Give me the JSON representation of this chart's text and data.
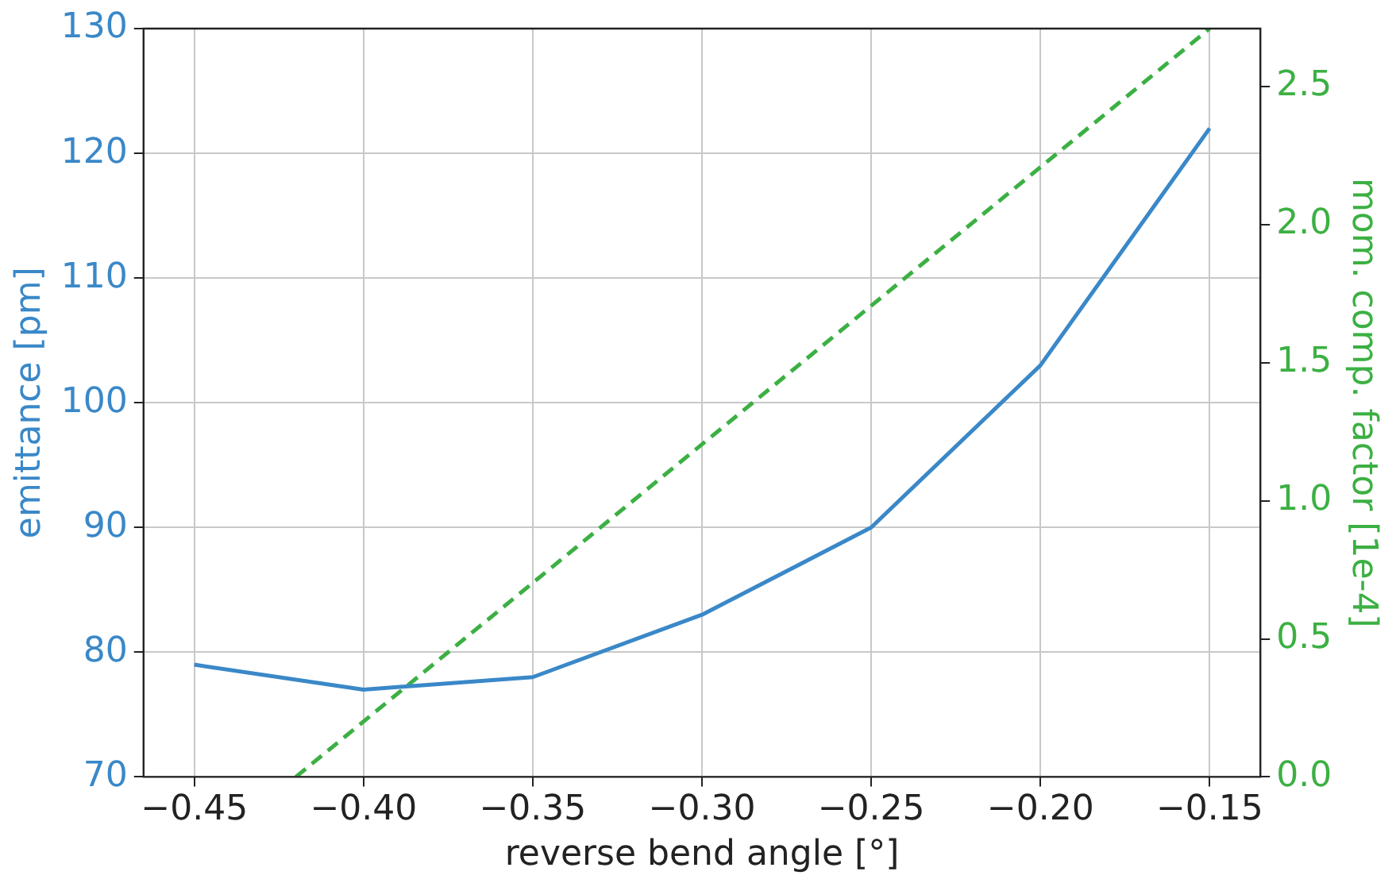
{
  "chart_data": {
    "type": "line",
    "xlabel": "reverse bend angle [°]",
    "ylabel": "emittance [pm]",
    "y2label": "mom. comp. factor [1e-4]",
    "x": [
      -0.45,
      -0.4,
      -0.35,
      -0.3,
      -0.25,
      -0.2,
      -0.15
    ],
    "series": [
      {
        "color": "#3a88c8",
        "values": [
          79,
          77,
          78,
          83,
          90,
          103,
          122
        ],
        "line_style": "solid"
      },
      {
        "color": "#3cb043",
        "axis": "y2",
        "x": [
          -0.42,
          -0.15
        ],
        "values": [
          0,
          2.71
        ],
        "line_style": "dashed"
      }
    ],
    "xlim": [
      -0.465,
      -0.135
    ],
    "xticks": [
      {
        "value": -0.45,
        "label": "−0.45"
      },
      {
        "value": -0.4,
        "label": "−0.40"
      },
      {
        "value": -0.35,
        "label": "−0.35"
      },
      {
        "value": -0.3,
        "label": "−0.30"
      },
      {
        "value": -0.25,
        "label": "−0.25"
      },
      {
        "value": -0.2,
        "label": "−0.20"
      },
      {
        "value": -0.15,
        "label": "−0.15"
      }
    ],
    "ylim": [
      70,
      130
    ],
    "yticks": [
      70,
      80,
      90,
      100,
      110,
      120,
      130
    ],
    "y2lim": [
      0,
      2.71
    ],
    "y2ticks": [
      {
        "value": 0,
        "label": "0.0"
      },
      {
        "value": 0.5,
        "label": "0.5"
      },
      {
        "value": 1,
        "label": "1.0"
      },
      {
        "value": 1.5,
        "label": "1.5"
      },
      {
        "value": 2,
        "label": "2.0"
      },
      {
        "value": 2.5,
        "label": "2.5"
      }
    ],
    "grid": true,
    "legend": false,
    "marker": "none"
  }
}
